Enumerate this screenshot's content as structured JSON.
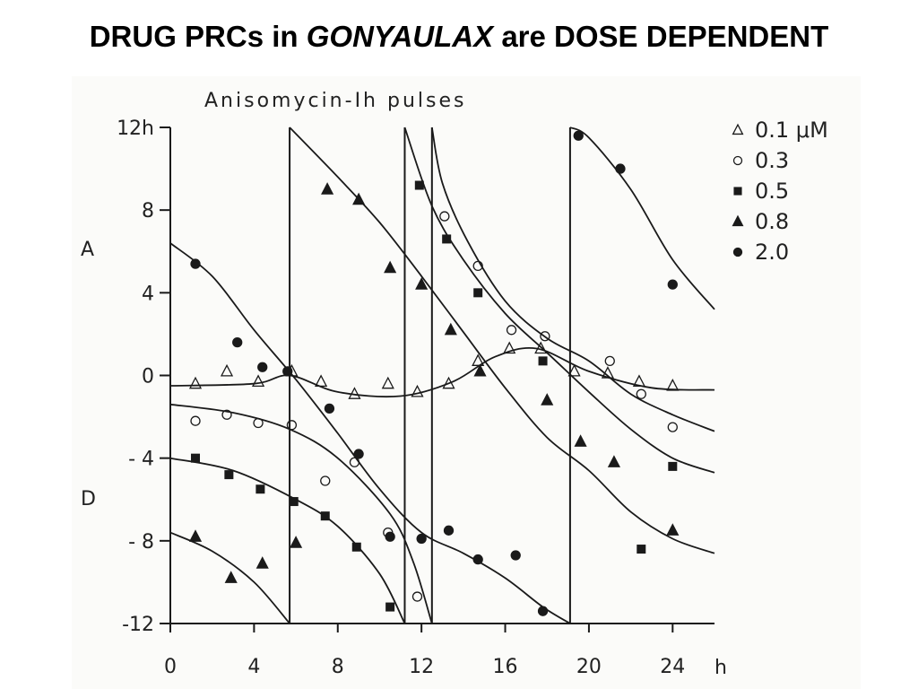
{
  "slide": {
    "title_part1": "DRUG PRCs in ",
    "title_italic": "GONYAULAX",
    "title_part2": " are DOSE DEPENDENT"
  },
  "chart_data": {
    "type": "scatter",
    "title": "Anisomycin-Ih pulses",
    "xlabel": "h",
    "ylabel": "",
    "advance_label": "A",
    "delay_label": "D",
    "xlim": [
      0,
      26
    ],
    "ylim": [
      -12,
      12
    ],
    "x_ticks": [
      0,
      4,
      8,
      12,
      16,
      20,
      24
    ],
    "y_ticks": [
      12,
      8,
      4,
      0,
      -4,
      -8,
      -12
    ],
    "y_tick_labels": [
      "12h",
      "8",
      "4",
      "0",
      "- 4",
      "- 8",
      "-12"
    ],
    "legend_position": "top-right",
    "series": [
      {
        "name": "0.1 μM",
        "marker": "open-triangle",
        "points": [
          [
            1.2,
            -0.4
          ],
          [
            2.7,
            0.2
          ],
          [
            4.2,
            -0.3
          ],
          [
            5.8,
            0.2
          ],
          [
            7.2,
            -0.3
          ],
          [
            8.8,
            -0.9
          ],
          [
            10.4,
            -0.4
          ],
          [
            11.8,
            -0.8
          ],
          [
            13.3,
            -0.4
          ],
          [
            14.7,
            0.7
          ],
          [
            16.2,
            1.3
          ],
          [
            17.7,
            1.3
          ],
          [
            19.3,
            0.2
          ],
          [
            20.9,
            0.1
          ],
          [
            22.4,
            -0.3
          ],
          [
            24.0,
            -0.5
          ]
        ],
        "curve": [
          [
            [
              0,
              -0.5
            ],
            [
              4,
              -0.4
            ],
            [
              5.7,
              0.0
            ],
            [
              8,
              -0.8
            ],
            [
              11,
              -1.0
            ],
            [
              13.5,
              -0.3
            ],
            [
              15.5,
              0.9
            ],
            [
              17.5,
              1.3
            ],
            [
              20,
              0.2
            ],
            [
              23,
              -0.6
            ],
            [
              26,
              -0.7
            ]
          ]
        ]
      },
      {
        "name": "0.3",
        "marker": "open-circle",
        "points": [
          [
            1.2,
            -2.2
          ],
          [
            2.7,
            -1.9
          ],
          [
            4.2,
            -2.3
          ],
          [
            5.8,
            -2.4
          ],
          [
            7.4,
            -5.1
          ],
          [
            8.8,
            -4.2
          ],
          [
            10.4,
            -7.6
          ],
          [
            11.8,
            -10.7
          ],
          [
            13.1,
            7.7
          ],
          [
            14.7,
            5.3
          ],
          [
            16.3,
            2.2
          ],
          [
            17.9,
            1.9
          ],
          [
            21.0,
            0.7
          ],
          [
            22.5,
            -0.9
          ],
          [
            24.0,
            -2.5
          ]
        ],
        "curve": [
          [
            [
              0,
              -1.4
            ],
            [
              3,
              -1.8
            ],
            [
              5.7,
              -2.6
            ],
            [
              8,
              -4.0
            ],
            [
              10.5,
              -6.7
            ],
            [
              11.6,
              -9.0
            ],
            [
              12.5,
              -12
            ]
          ],
          [
            [
              12.5,
              12
            ],
            [
              13,
              9.3
            ],
            [
              14.2,
              6.5
            ],
            [
              16,
              3.6
            ],
            [
              18,
              1.8
            ],
            [
              20,
              0.7
            ],
            [
              22,
              -0.9
            ],
            [
              24,
              -1.9
            ],
            [
              26,
              -2.7
            ]
          ]
        ]
      },
      {
        "name": "0.5",
        "marker": "filled-square",
        "points": [
          [
            1.2,
            -4.0
          ],
          [
            2.8,
            -4.8
          ],
          [
            4.3,
            -5.5
          ],
          [
            5.9,
            -6.1
          ],
          [
            7.4,
            -6.8
          ],
          [
            8.9,
            -8.3
          ],
          [
            10.5,
            -11.2
          ],
          [
            11.9,
            9.2
          ],
          [
            13.2,
            6.6
          ],
          [
            14.7,
            4.0
          ],
          [
            17.8,
            0.7
          ],
          [
            22.5,
            -8.4
          ],
          [
            24.0,
            -4.4
          ]
        ],
        "curve": [
          [
            [
              0,
              -4.0
            ],
            [
              3,
              -4.6
            ],
            [
              6,
              -6.0
            ],
            [
              8,
              -7.3
            ],
            [
              10,
              -9.6
            ],
            [
              11.2,
              -12
            ]
          ],
          [
            [
              11.2,
              12
            ],
            [
              12.5,
              8.2
            ],
            [
              14,
              5.6
            ],
            [
              16,
              3.0
            ],
            [
              18,
              1.1
            ],
            [
              20,
              -0.8
            ],
            [
              22,
              -2.6
            ],
            [
              24,
              -4.0
            ],
            [
              26,
              -4.7
            ]
          ]
        ]
      },
      {
        "name": "0.8",
        "marker": "filled-triangle",
        "points": [
          [
            1.2,
            -7.8
          ],
          [
            2.9,
            -9.8
          ],
          [
            4.4,
            -9.1
          ],
          [
            6.0,
            -8.1
          ],
          [
            7.5,
            9.0
          ],
          [
            9.0,
            8.5
          ],
          [
            10.5,
            5.2
          ],
          [
            12.0,
            4.4
          ],
          [
            13.4,
            2.2
          ],
          [
            14.8,
            0.2
          ],
          [
            18.0,
            -1.2
          ],
          [
            19.6,
            -3.2
          ],
          [
            21.2,
            -4.2
          ],
          [
            24.0,
            -7.5
          ]
        ],
        "curve": [
          [
            [
              0,
              -7.6
            ],
            [
              2,
              -8.5
            ],
            [
              4,
              -10.0
            ],
            [
              5.7,
              -12
            ]
          ],
          [
            [
              5.7,
              12
            ],
            [
              8,
              9.6
            ],
            [
              10,
              7.4
            ],
            [
              12,
              4.8
            ],
            [
              14,
              2.1
            ],
            [
              16,
              -0.6
            ],
            [
              18,
              -3.0
            ],
            [
              20,
              -4.6
            ],
            [
              22,
              -6.6
            ],
            [
              24,
              -7.9
            ],
            [
              26,
              -8.6
            ]
          ]
        ]
      },
      {
        "name": "2.0",
        "marker": "filled-circle",
        "points": [
          [
            1.2,
            5.4
          ],
          [
            3.2,
            1.6
          ],
          [
            4.4,
            0.4
          ],
          [
            5.6,
            0.2
          ],
          [
            7.6,
            -1.6
          ],
          [
            9.0,
            -3.8
          ],
          [
            10.5,
            -7.8
          ],
          [
            12.0,
            -7.9
          ],
          [
            13.3,
            -7.5
          ],
          [
            14.7,
            -8.9
          ],
          [
            16.5,
            -8.7
          ],
          [
            17.8,
            -11.4
          ],
          [
            19.5,
            11.6
          ],
          [
            21.5,
            10.0
          ],
          [
            24.0,
            4.4
          ]
        ],
        "curve": [
          [
            [
              0,
              6.4
            ],
            [
              2,
              4.8
            ],
            [
              4,
              2.2
            ],
            [
              6,
              -0.2
            ],
            [
              8,
              -2.8
            ],
            [
              10,
              -5.5
            ],
            [
              12,
              -7.6
            ],
            [
              14,
              -8.6
            ],
            [
              16,
              -9.8
            ],
            [
              17.8,
              -11.2
            ],
            [
              19.1,
              -12
            ]
          ],
          [
            [
              19.1,
              12
            ],
            [
              20,
              11.5
            ],
            [
              22,
              9.0
            ],
            [
              24,
              5.6
            ],
            [
              26,
              3.2
            ]
          ]
        ]
      }
    ],
    "vertical_lines": [
      5.7,
      11.2,
      12.5,
      19.1
    ],
    "colors": {
      "ink": "#1a1a1a",
      "background": "#fbfbf9"
    }
  }
}
